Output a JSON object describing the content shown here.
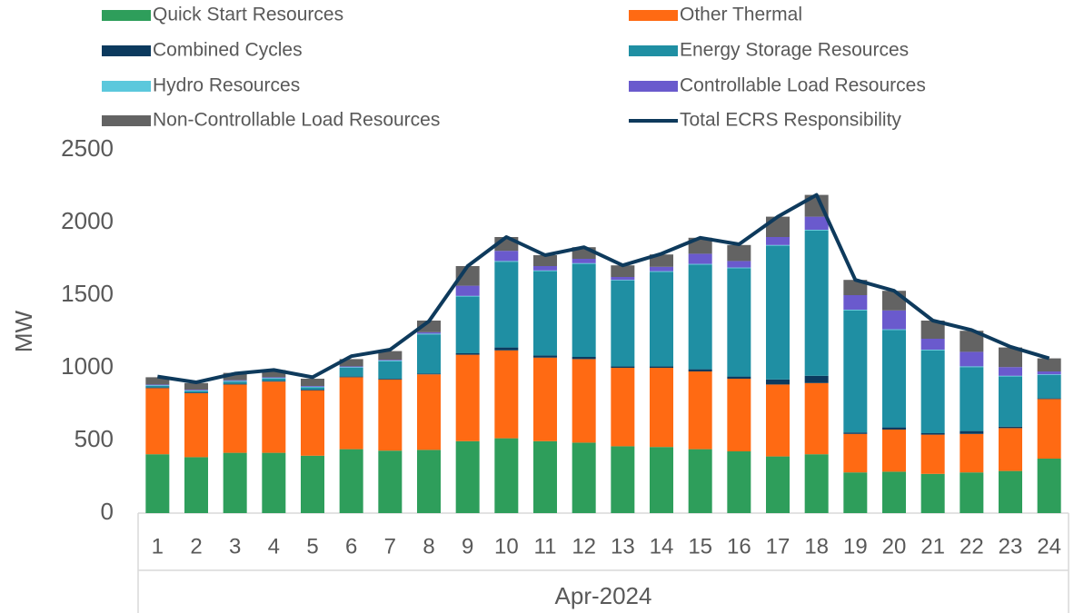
{
  "chart_data": {
    "type": "stacked-bar-line",
    "categories": [
      "1",
      "2",
      "3",
      "4",
      "5",
      "6",
      "7",
      "8",
      "9",
      "10",
      "11",
      "12",
      "13",
      "14",
      "15",
      "16",
      "17",
      "18",
      "19",
      "20",
      "21",
      "22",
      "23",
      "24"
    ],
    "group_label": "Apr-2024",
    "ylabel": "MW",
    "ylim": [
      0,
      2500
    ],
    "yticks": [
      0,
      500,
      1000,
      1500,
      2000,
      2500
    ],
    "series": [
      {
        "name": "Quick Start Resources",
        "color": "#2e9e5b",
        "values": [
          405,
          385,
          415,
          415,
          395,
          440,
          430,
          435,
          495,
          515,
          495,
          485,
          460,
          455,
          440,
          425,
          390,
          405,
          280,
          285,
          270,
          280,
          290,
          375
        ]
      },
      {
        "name": "Other Thermal",
        "color": "#ff6a13",
        "values": [
          455,
          440,
          470,
          490,
          450,
          495,
          490,
          520,
          595,
          605,
          575,
          575,
          540,
          545,
          535,
          500,
          495,
          490,
          265,
          290,
          270,
          265,
          295,
          410
        ]
      },
      {
        "name": "Combined Cycles",
        "color": "#0c3a5e",
        "values": [
          5,
          5,
          5,
          5,
          5,
          5,
          5,
          5,
          10,
          20,
          15,
          15,
          10,
          10,
          15,
          15,
          35,
          50,
          10,
          15,
          10,
          20,
          10,
          5
        ]
      },
      {
        "name": "Energy Storage Resources",
        "color": "#1f8fa3",
        "values": [
          10,
          10,
          15,
          15,
          15,
          60,
          120,
          270,
          390,
          590,
          580,
          640,
          590,
          650,
          720,
          745,
          920,
          1000,
          840,
          670,
          570,
          440,
          345,
          160
        ]
      },
      {
        "name": "Hydro Resources",
        "color": "#5bc8dc",
        "values": [
          5,
          5,
          5,
          5,
          5,
          5,
          5,
          5,
          5,
          5,
          5,
          5,
          5,
          5,
          5,
          5,
          5,
          5,
          5,
          5,
          5,
          5,
          5,
          5
        ]
      },
      {
        "name": "Controllable Load Resources",
        "color": "#6a5acd",
        "values": [
          5,
          5,
          5,
          5,
          5,
          5,
          5,
          10,
          70,
          70,
          30,
          30,
          20,
          30,
          70,
          45,
          55,
          90,
          100,
          130,
          75,
          100,
          60,
          20
        ]
      },
      {
        "name": "Non-Controllable Load Resources",
        "color": "#636363",
        "values": [
          50,
          45,
          50,
          50,
          50,
          50,
          60,
          80,
          135,
          95,
          75,
          80,
          80,
          85,
          110,
          110,
          140,
          150,
          105,
          135,
          125,
          145,
          135,
          90
        ]
      }
    ],
    "line": {
      "name": "Total ECRS Responsibility",
      "color": "#0e3a5c",
      "values": [
        940,
        900,
        960,
        985,
        935,
        1080,
        1125,
        1320,
        1700,
        1900,
        1775,
        1830,
        1705,
        1785,
        1895,
        1850,
        2040,
        2190,
        1605,
        1530,
        1325,
        1260,
        1145,
        1065
      ]
    }
  }
}
